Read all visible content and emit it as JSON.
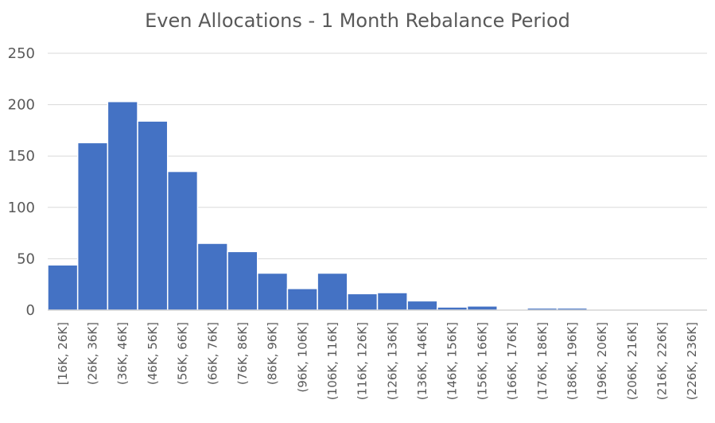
{
  "chart_data": {
    "type": "bar",
    "title": "Even Allocations - 1 Month Rebalance Period",
    "xlabel": "",
    "ylabel": "",
    "ylim": [
      0,
      250
    ],
    "yticks": [
      0,
      50,
      100,
      150,
      200,
      250
    ],
    "grid": true,
    "legend": "none",
    "bar_color": "#4472c4",
    "categories": [
      "[16K, 26K]",
      "(26K, 36K]",
      "(36K, 46K]",
      "(46K, 56K]",
      "(56K, 66K]",
      "(66K, 76K]",
      "(76K, 86K]",
      "(86K, 96K]",
      "(96K, 106K]",
      "(106K, 116K]",
      "(116K, 126K]",
      "(126K, 136K]",
      "(136K, 146K]",
      "(146K, 156K]",
      "(156K, 166K]",
      "(166K, 176K]",
      "(176K, 186K]",
      "(186K, 196K]",
      "(196K, 206K]",
      "(206K, 216K]",
      "(216K, 226K]",
      "(226K, 236K]"
    ],
    "values": [
      44,
      163,
      203,
      184,
      135,
      65,
      57,
      36,
      21,
      36,
      16,
      17,
      9,
      3,
      4,
      1,
      2,
      2,
      1,
      0,
      0,
      1
    ]
  }
}
